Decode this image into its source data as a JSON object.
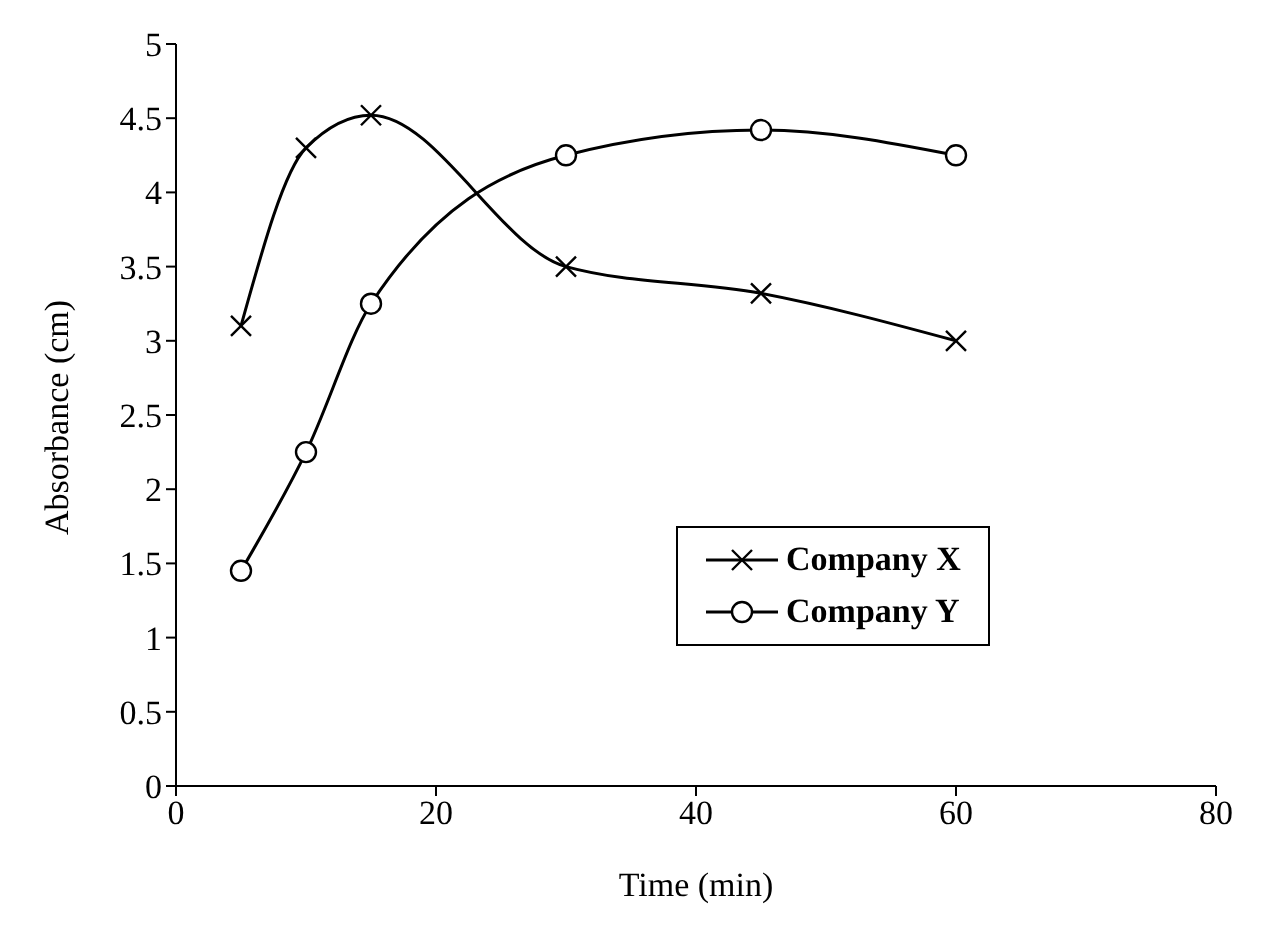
{
  "chart_data": {
    "type": "line",
    "xlabel": "Time (min)",
    "ylabel": "Absorbance (cm)",
    "x": [
      5,
      10,
      15,
      30,
      45,
      60
    ],
    "series": [
      {
        "name": "Company X",
        "color": "#000000",
        "marker": "cross",
        "values": [
          3.1,
          4.3,
          4.52,
          3.5,
          3.32,
          3.0
        ]
      },
      {
        "name": "Company Y",
        "color": "#000000",
        "marker": "circle",
        "values": [
          1.45,
          2.25,
          3.25,
          4.25,
          4.42,
          4.25
        ]
      }
    ],
    "xlim": [
      0,
      80
    ],
    "xticks": [
      0,
      20,
      40,
      60,
      80
    ],
    "ylim": [
      0,
      5
    ],
    "yticks": [
      0,
      0.5,
      1,
      1.5,
      2,
      2.5,
      3,
      3.5,
      4,
      4.5,
      5
    ],
    "grid": false,
    "legend": "bottom right",
    "line_style": "solid"
  }
}
